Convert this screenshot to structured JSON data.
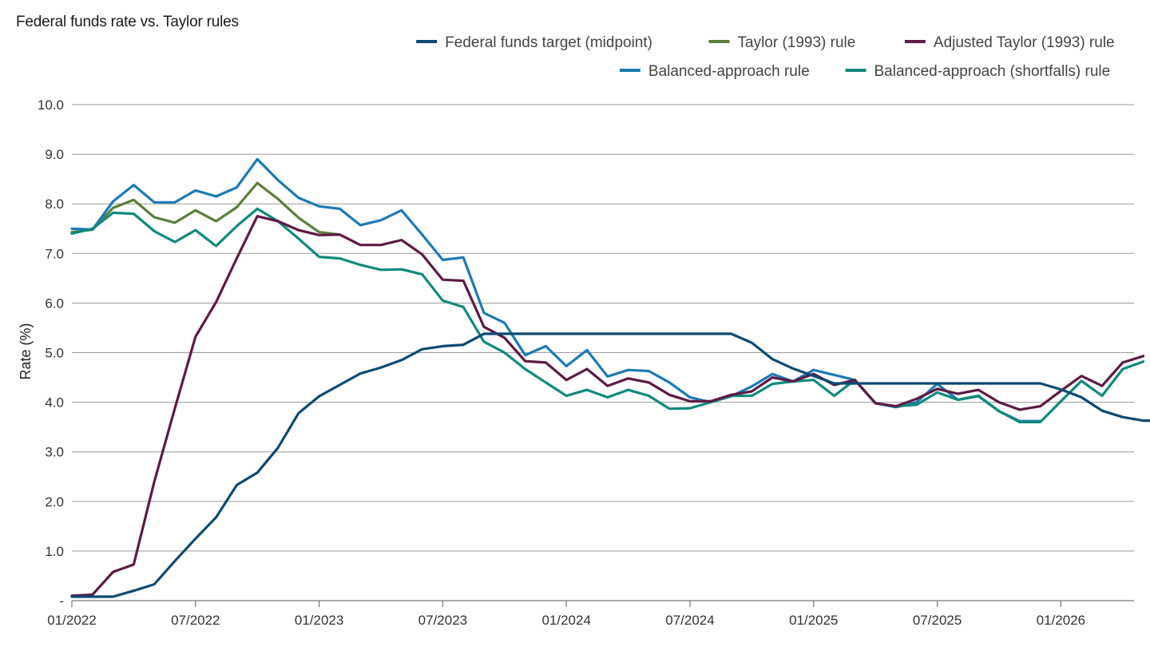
{
  "chart_data": {
    "type": "line",
    "title": "Federal funds rate vs. Taylor rules",
    "xlabel": "",
    "ylabel": "Rate (%)",
    "ylim": [
      0,
      10
    ],
    "y_ticks": [
      "-",
      "1.0",
      "2.0",
      "3.0",
      "4.0",
      "5.0",
      "6.0",
      "7.0",
      "8.0",
      "9.0",
      "10.0"
    ],
    "x_ticks": [
      "01/2022",
      "07/2022",
      "01/2023",
      "07/2023",
      "01/2024",
      "07/2024",
      "01/2025",
      "07/2025",
      "01/2026"
    ],
    "grid": true,
    "legend_position": "top-right",
    "x_start": "01/2022",
    "series": [
      {
        "name": "Federal funds target (midpoint)",
        "color": "#0d4a73",
        "values": [
          0.08,
          0.08,
          0.08,
          0.2,
          0.33,
          0.8,
          1.25,
          1.68,
          2.33,
          2.58,
          3.08,
          3.78,
          4.12,
          4.35,
          4.58,
          4.7,
          4.85,
          5.07,
          5.13,
          5.16,
          5.38,
          5.38,
          5.38,
          5.38,
          5.38,
          5.38,
          5.38,
          5.38,
          5.38,
          5.38,
          5.38,
          5.38,
          5.38,
          5.2,
          4.87,
          4.68,
          4.53,
          4.38,
          4.38,
          4.38,
          4.38,
          4.38,
          4.38,
          4.38,
          4.38,
          4.38,
          4.38,
          4.38,
          4.26,
          4.1,
          3.83,
          3.7,
          3.63,
          3.63,
          3.63,
          3.63,
          3.63,
          3.63
        ]
      },
      {
        "name": "Taylor (1993) rule",
        "color": "#5b7f3a",
        "values": [
          7.43,
          7.48,
          7.92,
          8.08,
          7.73,
          7.62,
          7.87,
          7.65,
          7.93,
          8.42,
          8.1,
          7.72,
          7.43,
          7.38
        ]
      },
      {
        "name": "Adjusted Taylor (1993) rule",
        "color": "#5e1a44",
        "values": [
          0.1,
          0.12,
          0.58,
          0.73,
          2.4,
          3.88,
          5.32,
          6.02,
          6.9,
          7.75,
          7.65,
          7.47,
          7.37,
          7.38,
          7.17,
          7.17,
          7.27,
          6.98,
          6.47,
          6.45,
          5.52,
          5.3,
          4.83,
          4.8,
          4.45,
          4.67,
          4.33,
          4.48,
          4.4,
          4.15,
          4.02,
          4.02,
          4.15,
          4.22,
          4.5,
          4.42,
          4.57,
          4.35,
          4.45,
          3.98,
          3.92,
          4.07,
          4.27,
          4.17,
          4.25,
          4.0,
          3.85,
          3.92,
          4.23,
          4.53,
          4.33,
          4.8,
          4.93
        ]
      },
      {
        "name": "Balanced-approach rule",
        "color": "#1b7ab5",
        "values": [
          7.5,
          7.48,
          8.05,
          8.38,
          8.03,
          8.03,
          8.27,
          8.15,
          8.33,
          8.9,
          8.48,
          8.12,
          7.95,
          7.9,
          7.57,
          7.67,
          7.87,
          7.38,
          6.87,
          6.92,
          5.8,
          5.6,
          4.95,
          5.13,
          4.73,
          5.05,
          4.52,
          4.65,
          4.63,
          4.4,
          4.1,
          4.0,
          4.12,
          4.32,
          4.57,
          4.42,
          4.65,
          4.55,
          4.45,
          3.98,
          3.9,
          4.0,
          4.37,
          4.05,
          4.12,
          3.82,
          3.62,
          3.62
        ]
      },
      {
        "name": "Balanced-approach (shortfalls) rule",
        "color": "#0f8a7d",
        "values": [
          7.4,
          7.5,
          7.82,
          7.8,
          7.45,
          7.23,
          7.47,
          7.15,
          7.55,
          7.9,
          7.65,
          7.3,
          6.93,
          6.9,
          6.77,
          6.67,
          6.68,
          6.58,
          6.05,
          5.92,
          5.22,
          5.0,
          4.67,
          4.4,
          4.13,
          4.25,
          4.1,
          4.25,
          4.13,
          3.87,
          3.88,
          4.0,
          4.13,
          4.13,
          4.37,
          4.42,
          4.45,
          4.13,
          4.45,
          3.98,
          3.92,
          3.95,
          4.2,
          4.05,
          4.13,
          3.82,
          3.6,
          3.6,
          4.02,
          4.43,
          4.13,
          4.67,
          4.82
        ]
      }
    ]
  }
}
